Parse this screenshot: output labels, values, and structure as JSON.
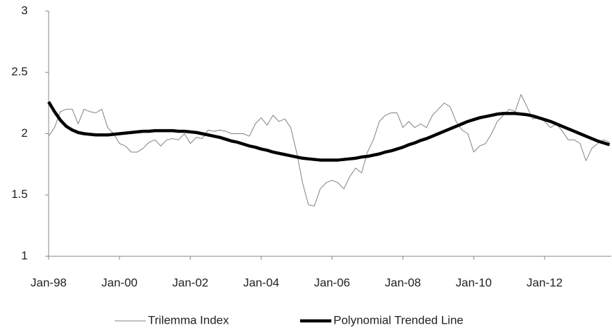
{
  "chart_data": {
    "type": "line",
    "categories": [
      "Jan-98",
      null,
      null,
      null,
      null,
      null,
      null,
      null,
      null,
      null,
      null,
      null,
      "Jan-00",
      null,
      null,
      null,
      null,
      null,
      null,
      null,
      null,
      null,
      null,
      null,
      "Jan-02",
      null,
      null,
      null,
      null,
      null,
      null,
      null,
      null,
      null,
      null,
      null,
      "Jan-04",
      null,
      null,
      null,
      null,
      null,
      null,
      null,
      null,
      null,
      null,
      null,
      "Jan-06",
      null,
      null,
      null,
      null,
      null,
      null,
      null,
      null,
      null,
      null,
      null,
      "Jan-08",
      null,
      null,
      null,
      null,
      null,
      null,
      null,
      null,
      null,
      null,
      null,
      "Jan-10",
      null,
      null,
      null,
      null,
      null,
      null,
      null,
      null,
      null,
      null,
      null,
      "Jan-12",
      null,
      null,
      null,
      null,
      null,
      null,
      null,
      null,
      null,
      null,
      null
    ],
    "series": [
      {
        "name": "Trilemma Index",
        "color": "#808080",
        "values": [
          1.98,
          2.05,
          2.18,
          2.2,
          2.2,
          2.08,
          2.2,
          2.18,
          2.17,
          2.2,
          2.05,
          2.0,
          1.92,
          1.9,
          1.85,
          1.85,
          1.88,
          1.93,
          1.95,
          1.9,
          1.95,
          1.96,
          1.95,
          2.0,
          1.92,
          1.97,
          1.96,
          2.03,
          2.02,
          2.03,
          2.02,
          2.0,
          2.0,
          2.0,
          1.98,
          2.08,
          2.13,
          2.07,
          2.15,
          2.1,
          2.12,
          2.05,
          1.85,
          1.6,
          1.42,
          1.41,
          1.55,
          1.6,
          1.62,
          1.6,
          1.55,
          1.65,
          1.72,
          1.68,
          1.85,
          1.95,
          2.1,
          2.15,
          2.17,
          2.17,
          2.05,
          2.1,
          2.05,
          2.08,
          2.05,
          2.15,
          2.2,
          2.25,
          2.22,
          2.1,
          2.03,
          2.0,
          1.85,
          1.9,
          1.92,
          2.0,
          2.1,
          2.15,
          2.2,
          2.18,
          2.32,
          2.22,
          2.12,
          2.13,
          2.1,
          2.05,
          2.08,
          2.02,
          1.95,
          1.95,
          1.92,
          1.78,
          1.88,
          1.92,
          1.95,
          1.93
        ]
      },
      {
        "name": "Polynomial Trended Line",
        "color": "#000000",
        "values": [
          2.26,
          2.18,
          2.11,
          2.06,
          2.03,
          2.01,
          2.0,
          1.995,
          1.99,
          1.99,
          1.99,
          1.995,
          2.0,
          2.005,
          2.01,
          2.015,
          2.02,
          2.02,
          2.025,
          2.025,
          2.025,
          2.025,
          2.02,
          2.02,
          2.015,
          2.01,
          2.0,
          1.99,
          1.98,
          1.97,
          1.955,
          1.94,
          1.93,
          1.915,
          1.9,
          1.89,
          1.875,
          1.865,
          1.85,
          1.84,
          1.83,
          1.82,
          1.81,
          1.8,
          1.795,
          1.79,
          1.785,
          1.785,
          1.785,
          1.785,
          1.79,
          1.795,
          1.8,
          1.81,
          1.815,
          1.825,
          1.835,
          1.85,
          1.86,
          1.875,
          1.89,
          1.91,
          1.925,
          1.945,
          1.96,
          1.98,
          2.0,
          2.02,
          2.04,
          2.06,
          2.08,
          2.1,
          2.115,
          2.13,
          2.14,
          2.15,
          2.16,
          2.165,
          2.165,
          2.165,
          2.16,
          2.155,
          2.145,
          2.13,
          2.115,
          2.1,
          2.08,
          2.06,
          2.04,
          2.02,
          2.0,
          1.98,
          1.96,
          1.94,
          1.925,
          1.91
        ]
      }
    ],
    "ylim": [
      1,
      3
    ],
    "yticks": [
      1,
      1.5,
      2,
      2.5,
      3
    ],
    "legend": "bottom"
  }
}
